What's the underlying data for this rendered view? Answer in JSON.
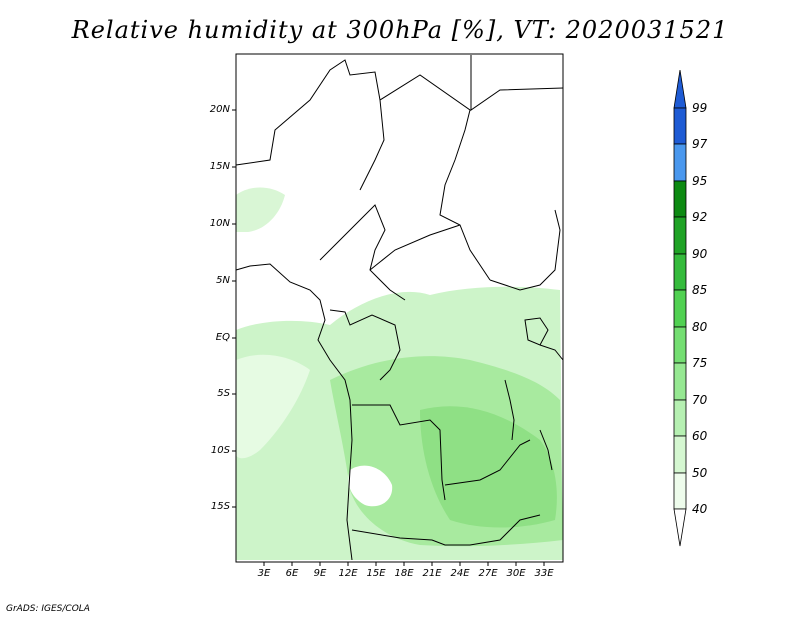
{
  "title": "Relative humidity at 300hPa [%], VT: 2020031521",
  "footer": "GrADS: IGES/COLA",
  "map": {
    "lat_labels": [
      "20N",
      "15N",
      "10N",
      "5N",
      "EQ",
      "5S",
      "10S",
      "15S"
    ],
    "lon_labels": [
      "3E",
      "6E",
      "9E",
      "12E",
      "15E",
      "18E",
      "21E",
      "24E",
      "27E",
      "30E",
      "33E"
    ]
  },
  "colorbar": {
    "labels": [
      "99",
      "97",
      "95",
      "92",
      "90",
      "85",
      "80",
      "75",
      "70",
      "60",
      "50",
      "40"
    ],
    "colors": [
      "#1e5bd4",
      "#3b7fe6",
      "#4a98ee",
      "#0d8a12",
      "#1fa326",
      "#35bb3c",
      "#51d152",
      "#74de72",
      "#96e892",
      "#b6f0b2",
      "#d5f7d1",
      "#eefcec",
      "#ffffff"
    ]
  }
}
